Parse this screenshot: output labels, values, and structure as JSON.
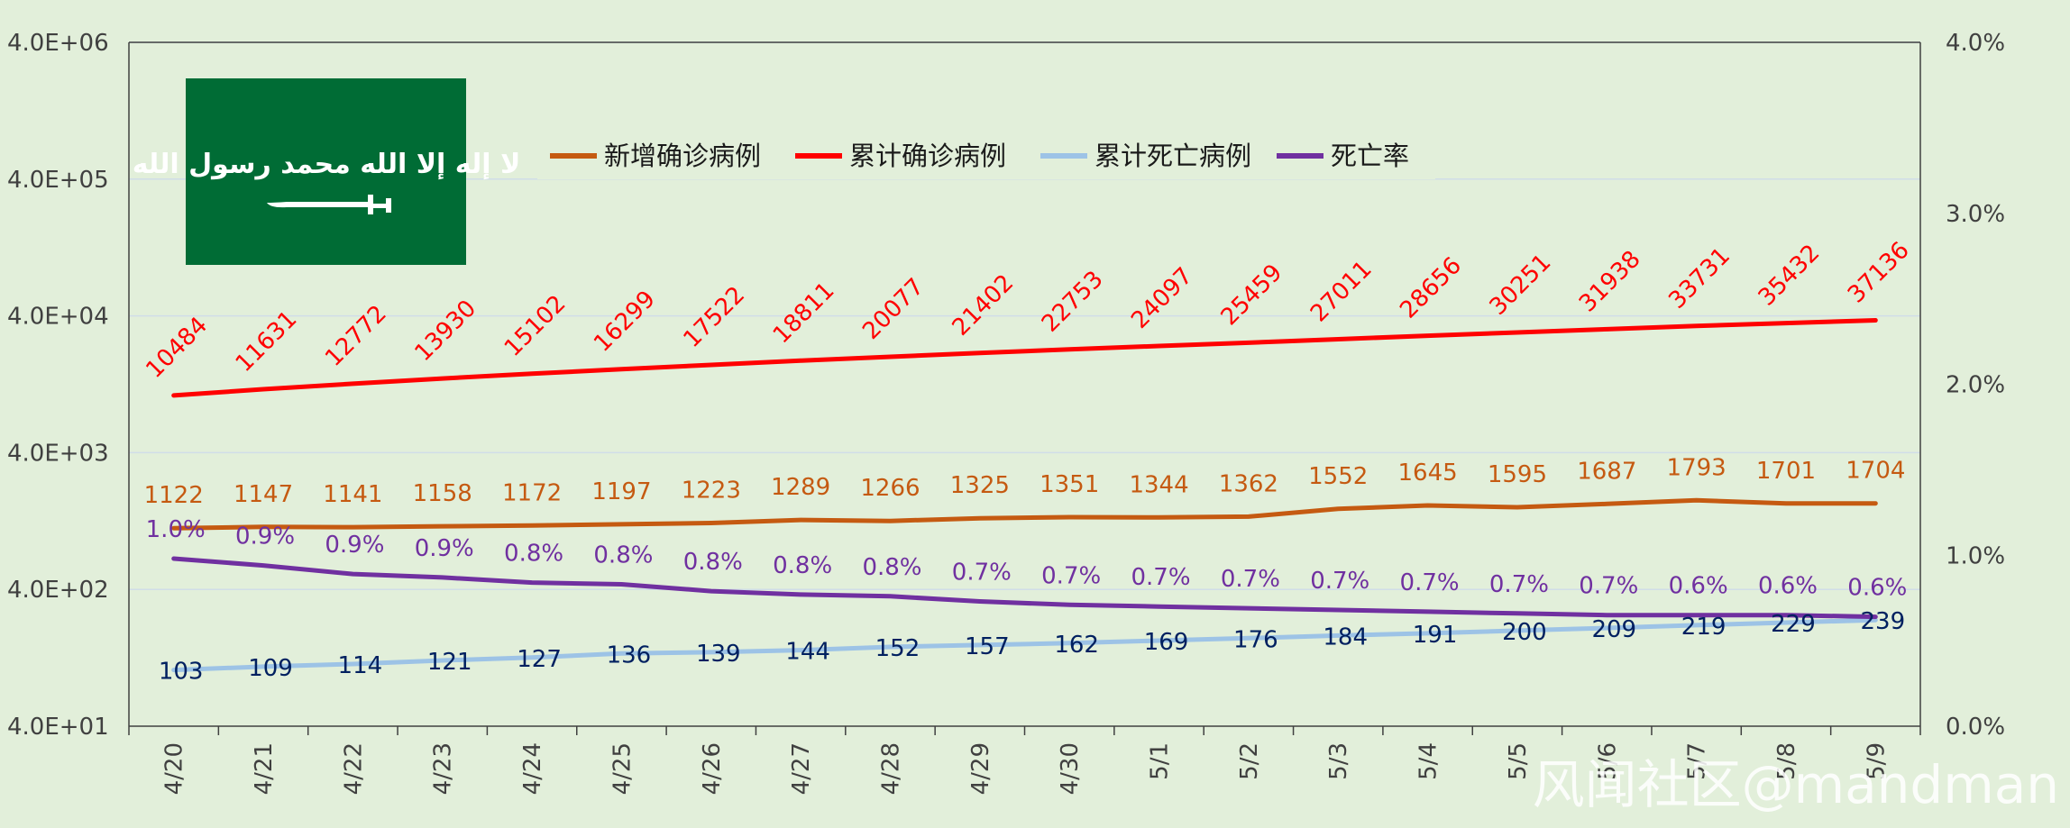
{
  "chart_data": {
    "type": "line",
    "categories": [
      "4/20",
      "4/21",
      "4/22",
      "4/23",
      "4/24",
      "4/25",
      "4/26",
      "4/27",
      "4/28",
      "4/29",
      "4/30",
      "5/1",
      "5/2",
      "5/3",
      "5/4",
      "5/5",
      "5/6",
      "5/7",
      "5/8",
      "5/9"
    ],
    "y_axis_left": {
      "scale": "log",
      "range": [
        40,
        4000000
      ],
      "tick_labels": [
        "4.0E+01",
        "4.0E+02",
        "4.0E+03",
        "4.0E+04",
        "4.0E+05",
        "4.0E+06"
      ]
    },
    "y_axis_right": {
      "range": [
        0,
        0.04
      ],
      "tick_labels": [
        "0.0%",
        "1.0%",
        "2.0%",
        "3.0%",
        "4.0%"
      ]
    },
    "grid": true,
    "legend_position": "top",
    "series": [
      {
        "name": "新增确诊病例",
        "axis": "left",
        "color": "#c55a11",
        "values": [
          1122,
          1147,
          1141,
          1158,
          1172,
          1197,
          1223,
          1289,
          1266,
          1325,
          1351,
          1344,
          1362,
          1552,
          1645,
          1595,
          1687,
          1793,
          1701,
          1704
        ],
        "labels": [
          "1122",
          "1147",
          "1141",
          "1158",
          "1172",
          "1197",
          "1223",
          "1289",
          "1266",
          "1325",
          "1351",
          "1344",
          "1362",
          "1552",
          "1645",
          "1595",
          "1687",
          "1793",
          "1701",
          "1704"
        ]
      },
      {
        "name": "累计确诊病例",
        "axis": "left",
        "color": "#ff0000",
        "values": [
          10484,
          11631,
          12772,
          13930,
          15102,
          16299,
          17522,
          18811,
          20077,
          21402,
          22753,
          24097,
          25459,
          27011,
          28656,
          30251,
          31938,
          33731,
          35432,
          37136
        ],
        "labels": [
          "10484",
          "11631",
          "12772",
          "13930",
          "15102",
          "16299",
          "17522",
          "18811",
          "20077",
          "21402",
          "22753",
          "24097",
          "25459",
          "27011",
          "28656",
          "30251",
          "31938",
          "33731",
          "35432",
          "37136"
        ]
      },
      {
        "name": "累计死亡病例",
        "axis": "left",
        "color": "#9dc3e6",
        "label_color": "#002060",
        "values": [
          103,
          109,
          114,
          121,
          127,
          136,
          139,
          144,
          152,
          157,
          162,
          169,
          176,
          184,
          191,
          200,
          209,
          219,
          229,
          239
        ],
        "labels": [
          "103",
          "109",
          "114",
          "121",
          "127",
          "136",
          "139",
          "144",
          "152",
          "157",
          "162",
          "169",
          "176",
          "184",
          "191",
          "200",
          "209",
          "219",
          "229",
          "239"
        ]
      },
      {
        "name": "死亡率",
        "axis": "right",
        "color": "#7030a0",
        "values": [
          0.0098,
          0.0094,
          0.0089,
          0.0087,
          0.0084,
          0.0083,
          0.0079,
          0.0077,
          0.0076,
          0.0073,
          0.0071,
          0.007,
          0.0069,
          0.0068,
          0.0067,
          0.0066,
          0.0065,
          0.0065,
          0.0065,
          0.0064
        ],
        "labels": [
          "1.0%",
          "0.9%",
          "0.9%",
          "0.9%",
          "0.8%",
          "0.8%",
          "0.8%",
          "0.8%",
          "0.8%",
          "0.7%",
          "0.7%",
          "0.7%",
          "0.7%",
          "0.7%",
          "0.7%",
          "0.7%",
          "0.7%",
          "0.6%",
          "0.6%",
          "0.6%"
        ]
      }
    ]
  },
  "flag": {
    "background": "#006c35",
    "emblem_color": "#ffffff",
    "script": "لا إله إلا الله محمد رسول الله"
  },
  "watermark": "风闻社区@mandman"
}
